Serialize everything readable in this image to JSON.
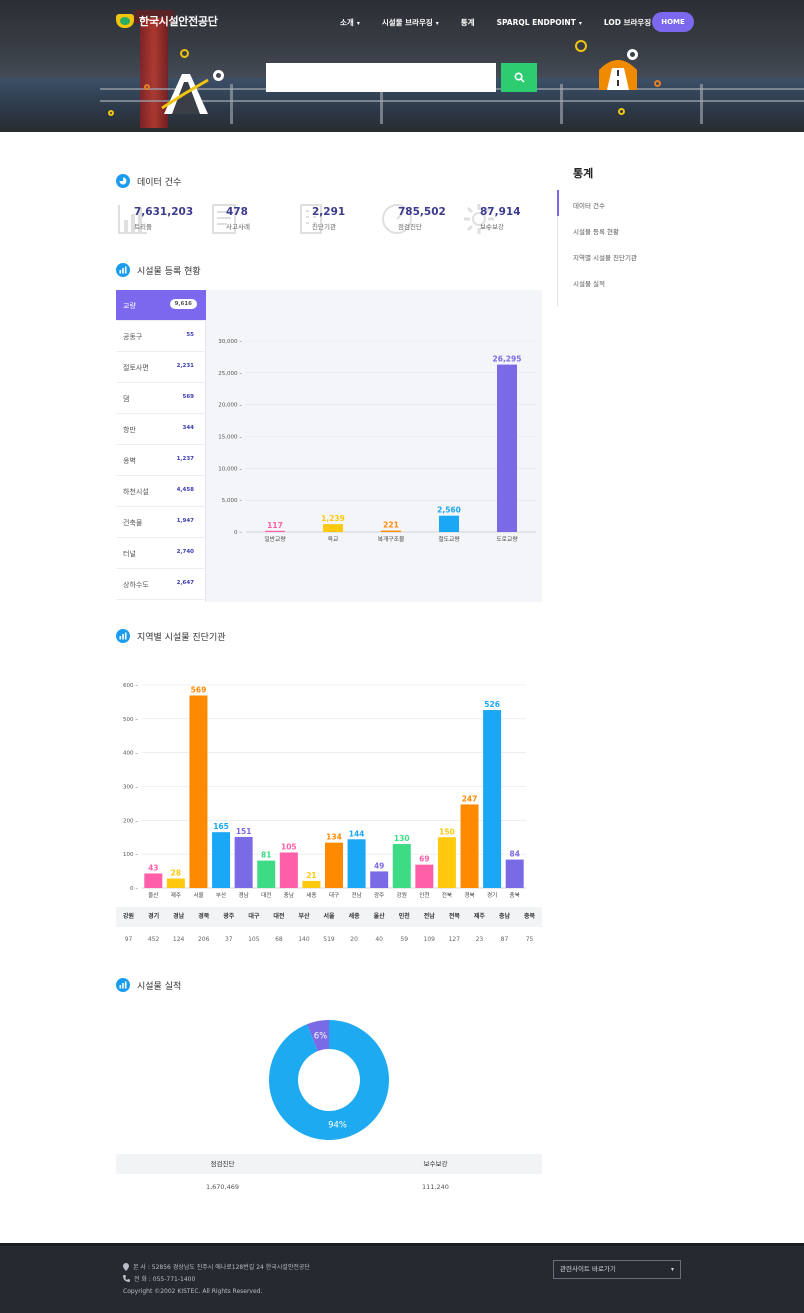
{
  "header": {
    "logo_text": "한국시설안전공단",
    "nav": [
      {
        "label": "소개",
        "dropdown": true
      },
      {
        "label": "시설물 브라우징",
        "dropdown": true
      },
      {
        "label": "통계",
        "dropdown": false
      },
      {
        "label": "SPARQL ENDPOINT",
        "dropdown": true
      },
      {
        "label": "LOD 브라우징",
        "dropdown": false
      }
    ],
    "home_label": "HOME",
    "search": {
      "value": "",
      "placeholder": ""
    },
    "accent": "#7b68ee",
    "search_button_color": "#2ecc71"
  },
  "data_count": {
    "title": "데이터 건수",
    "items": [
      {
        "value": "7,631,203",
        "label": "트리플",
        "icon": "chart-icon"
      },
      {
        "value": "478",
        "label": "사고사례",
        "icon": "document-icon"
      },
      {
        "value": "2,291",
        "label": "진단기관",
        "icon": "building-icon"
      },
      {
        "value": "785,502",
        "label": "점검진단",
        "icon": "gauge-icon"
      },
      {
        "value": "87,914",
        "label": "보수보강",
        "icon": "gear-icon"
      }
    ]
  },
  "facility": {
    "title": "시설물 등록 현황",
    "list": [
      {
        "label": "교량",
        "count": "9,616"
      },
      {
        "label": "공동구",
        "count": "55"
      },
      {
        "label": "절토사면",
        "count": "2,231"
      },
      {
        "label": "댐",
        "count": "569"
      },
      {
        "label": "항만",
        "count": "344"
      },
      {
        "label": "옹벽",
        "count": "1,237"
      },
      {
        "label": "하천시설",
        "count": "4,458"
      },
      {
        "label": "건축물",
        "count": "1,947"
      },
      {
        "label": "터널",
        "count": "2,740"
      },
      {
        "label": "상하수도",
        "count": "2,647"
      }
    ],
    "active_index": 0
  },
  "chart_data": [
    {
      "type": "bar",
      "categories": [
        "일반교량",
        "육교",
        "복개구조물",
        "철도교량",
        "도로교량"
      ],
      "values": [
        117,
        1239,
        221,
        2560,
        26295
      ],
      "data_labels": [
        "117",
        "1,239",
        "221",
        "2,560",
        "26,295"
      ],
      "colors": [
        "#ff5fa8",
        "#ffc90e",
        "#ff8a00",
        "#1aa7f5",
        "#7b6ae6"
      ],
      "ylim": [
        0,
        30000
      ],
      "yticks": [
        "0",
        "5,000",
        "10,000",
        "15,000",
        "20,000",
        "25,000",
        "30,000"
      ],
      "grid": true
    },
    {
      "type": "bar",
      "title": "지역별 시설물 진단기관",
      "categories": [
        "울산",
        "제주",
        "서울",
        "부산",
        "경남",
        "대전",
        "충남",
        "세종",
        "대구",
        "전남",
        "광주",
        "강원",
        "인천",
        "전북",
        "경북",
        "경기",
        "충북"
      ],
      "values": [
        43,
        28,
        569,
        165,
        151,
        81,
        105,
        21,
        134,
        144,
        49,
        130,
        69,
        150,
        247,
        526,
        84
      ],
      "colors": [
        "#ff5fa8",
        "#ffc90e",
        "#ff8a00",
        "#1aa7f5",
        "#7b6ae6",
        "#3ddc84",
        "#ff5fa8",
        "#ffc90e",
        "#ff8a00",
        "#1aa7f5",
        "#7b6ae6",
        "#3ddc84",
        "#ff5fa8",
        "#ffc90e",
        "#ff8a00",
        "#1aa7f5",
        "#7b6ae6"
      ],
      "ylim": [
        0,
        600
      ],
      "yticks": [
        "0",
        "100",
        "200",
        "300",
        "400",
        "500",
        "600"
      ],
      "grid": true
    },
    {
      "type": "pie",
      "title": "시설물 실적",
      "categories": [
        "점검진단",
        "보수보강"
      ],
      "values": [
        94,
        6
      ],
      "data_labels": [
        "94%",
        "6%"
      ],
      "colors": [
        "#1eaaf1",
        "#7b6ae6"
      ]
    }
  ],
  "region_table": {
    "headers": [
      "강원",
      "경기",
      "경남",
      "경북",
      "광주",
      "대구",
      "대전",
      "부산",
      "서울",
      "세종",
      "울산",
      "인천",
      "전남",
      "전북",
      "제주",
      "충남",
      "충북"
    ],
    "values": [
      "97",
      "452",
      "124",
      "206",
      "37",
      "105",
      "68",
      "140",
      "519",
      "20",
      "40",
      "59",
      "109",
      "127",
      "23",
      "87",
      "75"
    ]
  },
  "performance_table": {
    "headers": [
      "점검진단",
      "보수보강"
    ],
    "values": [
      "1,670,469",
      "111,240"
    ]
  },
  "sidebar": {
    "title": "통계",
    "items": [
      "데이터 건수",
      "시설물 등록 현황",
      "지역별 시설물 진단기관",
      "시설물 실적"
    ]
  },
  "footer": {
    "address": "본 사 : 52856 경상남도 진주시 에나로128번길 24 한국시설안전공단",
    "phone": "전 화 : 055-771-1400",
    "copyright": "Copyright ©2002 KISTEC. All Rights Reserved.",
    "related_sites": "관련사이트 바로가기"
  }
}
